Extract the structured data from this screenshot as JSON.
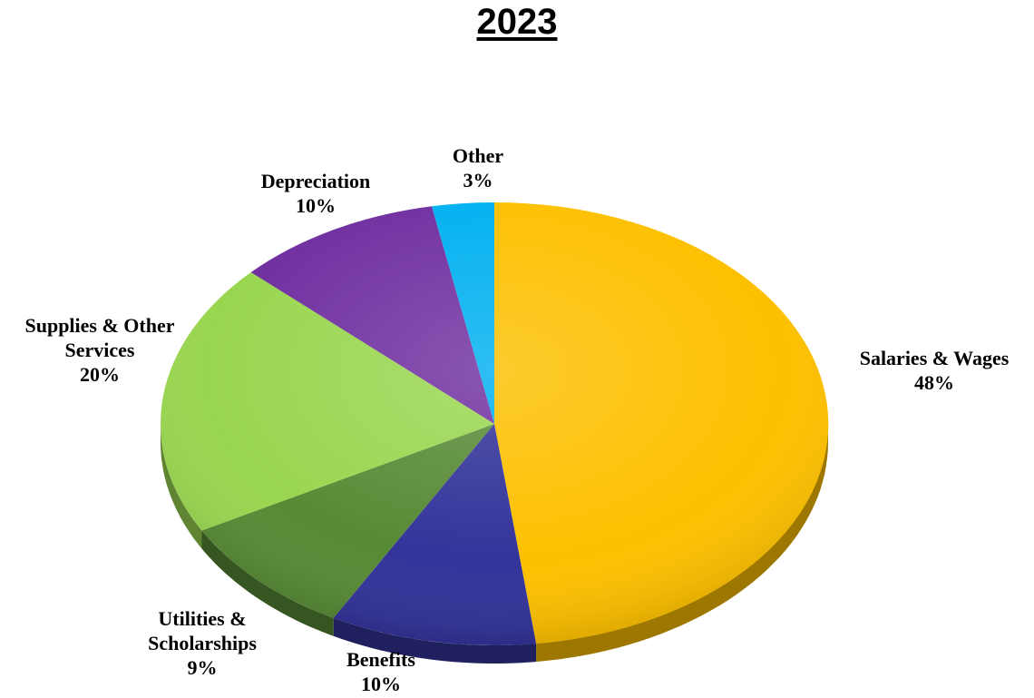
{
  "chart_data": {
    "type": "pie",
    "title": "2023",
    "slices": [
      {
        "name": "Salaries & Wages",
        "value": 48,
        "label_lines": [
          "Salaries & Wages",
          "48%"
        ],
        "color": "#FDC000"
      },
      {
        "name": "Benefits",
        "value": 10,
        "label_lines": [
          "Benefits",
          "10%"
        ],
        "color": "#33339A"
      },
      {
        "name": "Utilities & Scholarships",
        "value": 9,
        "label_lines": [
          "Utilities &",
          "Scholarships",
          "9%"
        ],
        "color": "#578A35"
      },
      {
        "name": "Supplies & Other Services",
        "value": 20,
        "label_lines": [
          "Supplies & Other",
          "Services",
          "20%"
        ],
        "color": "#99D650"
      },
      {
        "name": "Depreciation",
        "value": 10,
        "label_lines": [
          "Depreciation",
          "10%"
        ],
        "color": "#7030A0"
      },
      {
        "name": "Other",
        "value": 3,
        "label_lines": [
          "Other",
          "3%"
        ],
        "color": "#00B0F0"
      }
    ],
    "start": "12 o'clock",
    "direction": "clockwise",
    "legend": "none"
  }
}
